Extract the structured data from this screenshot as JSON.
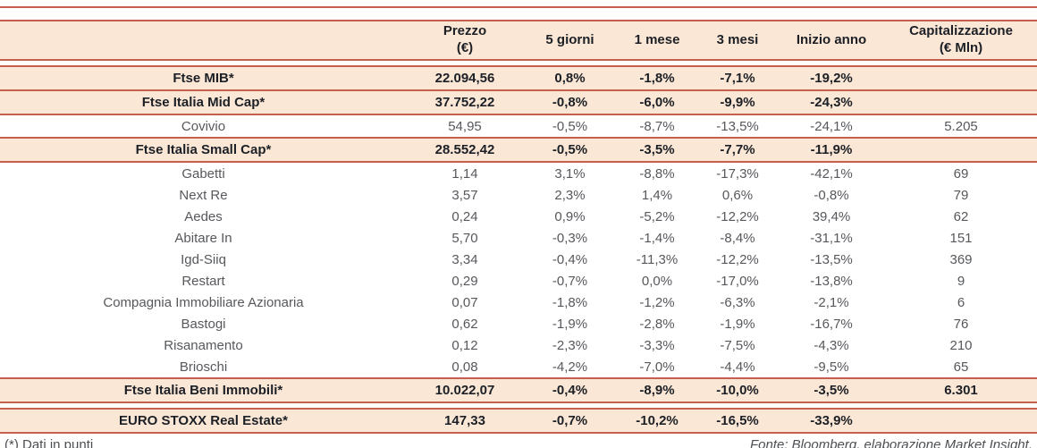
{
  "table": {
    "columns": [
      {
        "label": "",
        "key": "name"
      },
      {
        "label": "Prezzo",
        "sub": "(€)",
        "key": "prezzo"
      },
      {
        "label": "5 giorni",
        "key": "5-giorni"
      },
      {
        "label": "1 mese",
        "key": "1-mese"
      },
      {
        "label": "3 mesi",
        "key": "3-mesi"
      },
      {
        "label": "Inizio anno",
        "key": "inizio-anno"
      },
      {
        "label": "Capitalizzazione",
        "sub": "(€ Mln)",
        "key": "capitalizzazione"
      }
    ],
    "rows": [
      {
        "name": "Ftse MIB*",
        "type": "index",
        "group": "main",
        "values": [
          "22.094,56",
          "0,8%",
          "-1,8%",
          "-7,1%",
          "-19,2%",
          ""
        ]
      },
      {
        "name": "Ftse Italia Mid Cap*",
        "type": "index",
        "group": "main",
        "values": [
          "37.752,22",
          "-0,8%",
          "-6,0%",
          "-9,9%",
          "-24,3%",
          ""
        ]
      },
      {
        "name": "Covivio",
        "type": "company",
        "group": "main",
        "values": [
          "54,95",
          "-0,5%",
          "-8,7%",
          "-13,5%",
          "-24,1%",
          "5.205"
        ]
      },
      {
        "name": "Ftse Italia Small Cap*",
        "type": "index",
        "group": "main",
        "values": [
          "28.552,42",
          "-0,5%",
          "-3,5%",
          "-7,7%",
          "-11,9%",
          ""
        ]
      },
      {
        "name": "Gabetti",
        "type": "company",
        "group": "main",
        "values": [
          "1,14",
          "3,1%",
          "-8,8%",
          "-17,3%",
          "-42,1%",
          "69"
        ]
      },
      {
        "name": "Next Re",
        "type": "company",
        "group": "main",
        "values": [
          "3,57",
          "2,3%",
          "1,4%",
          "0,6%",
          "-0,8%",
          "79"
        ]
      },
      {
        "name": "Aedes",
        "type": "company",
        "group": "main",
        "values": [
          "0,24",
          "0,9%",
          "-5,2%",
          "-12,2%",
          "39,4%",
          "62"
        ]
      },
      {
        "name": "Abitare In",
        "type": "company",
        "group": "main",
        "values": [
          "5,70",
          "-0,3%",
          "-1,4%",
          "-8,4%",
          "-31,1%",
          "151"
        ]
      },
      {
        "name": "Igd-Siiq",
        "type": "company",
        "group": "main",
        "values": [
          "3,34",
          "-0,4%",
          "-11,3%",
          "-12,2%",
          "-13,5%",
          "369"
        ]
      },
      {
        "name": "Restart",
        "type": "company",
        "group": "main",
        "values": [
          "0,29",
          "-0,7%",
          "0,0%",
          "-17,0%",
          "-13,8%",
          "9"
        ]
      },
      {
        "name": "Compagnia Immobiliare Azionaria",
        "type": "company",
        "group": "main",
        "values": [
          "0,07",
          "-1,8%",
          "-1,2%",
          "-6,3%",
          "-2,1%",
          "6"
        ]
      },
      {
        "name": "Bastogi",
        "type": "company",
        "group": "main",
        "values": [
          "0,62",
          "-1,9%",
          "-2,8%",
          "-1,9%",
          "-16,7%",
          "76"
        ]
      },
      {
        "name": "Risanamento",
        "type": "company",
        "group": "main",
        "values": [
          "0,12",
          "-2,3%",
          "-3,3%",
          "-7,5%",
          "-4,3%",
          "210"
        ]
      },
      {
        "name": "Brioschi",
        "type": "company",
        "group": "main",
        "values": [
          "0,08",
          "-4,2%",
          "-7,0%",
          "-4,4%",
          "-9,5%",
          "65"
        ]
      },
      {
        "name": "Ftse Italia Beni Immobili*",
        "type": "index",
        "group": "main",
        "values": [
          "10.022,07",
          "-0,4%",
          "-8,9%",
          "-10,0%",
          "-3,5%",
          "6.301"
        ]
      },
      {
        "name": "EURO STOXX Real Estate*",
        "type": "index",
        "group": "bottom",
        "values": [
          "147,33",
          "-0,7%",
          "-10,2%",
          "-16,5%",
          "-33,9%",
          ""
        ]
      }
    ]
  },
  "footer": {
    "note": "(*) Dati in punti",
    "source": "Fonte: Bloomberg, elaborazione Market Insight."
  },
  "colors": {
    "accent_red": "#c4604d",
    "row_peach": "#fbe7d6",
    "text_dark": "#1c2026",
    "text_gray": "#56585c"
  }
}
